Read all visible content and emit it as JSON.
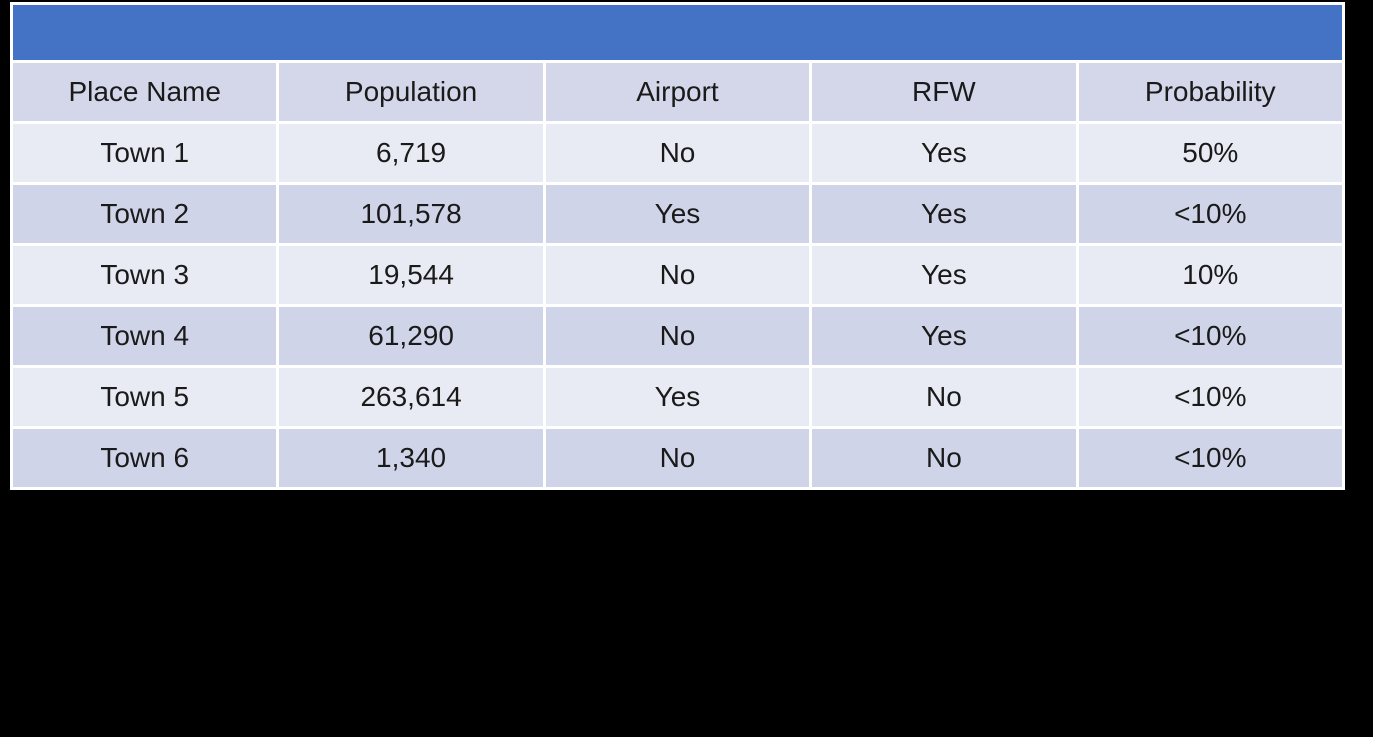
{
  "page": {
    "background": "#000000"
  },
  "table": {
    "title_bar": {
      "text": ""
    },
    "columns": [
      "Place Name",
      "Population",
      "Airport",
      "RFW",
      "Probability"
    ],
    "rows": [
      [
        "Town 1",
        "6,719",
        "No",
        "Yes",
        "50%"
      ],
      [
        "Town 2",
        "101,578",
        "Yes",
        "Yes",
        "<10%"
      ],
      [
        "Town 3",
        "19,544",
        "No",
        "Yes",
        "10%"
      ],
      [
        "Town 4",
        "61,290",
        "No",
        "Yes",
        "<10%"
      ],
      [
        "Town 5",
        "263,614",
        "Yes",
        "No",
        "<10%"
      ],
      [
        "Town 6",
        "1,340",
        "No",
        "No",
        "<10%"
      ]
    ],
    "colors": {
      "accent": "#4472c4",
      "header_bg": "#d3d7e9",
      "band_light": "#e9ebf4",
      "band_dark": "#cfd4e8",
      "gridline": "#ffffff",
      "text": "#1a1a1a"
    }
  }
}
